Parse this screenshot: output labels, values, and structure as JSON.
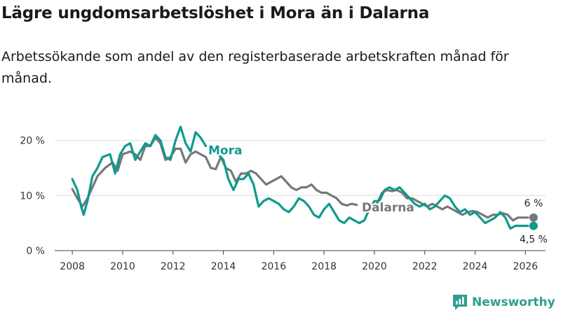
{
  "title": "Lägre ungdomsarbetslöshet i Mora än i Dalarna",
  "subtitle": "Arbetssökande som andel av den registerbaserade arbetskraften månad för månad.",
  "brand": "Newsworthy",
  "colors": {
    "mora": "#0f9a8d",
    "dalarna": "#77777b",
    "grid": "#dddddd",
    "axis": "#444444"
  },
  "chart_data": {
    "type": "line",
    "title": "Lägre ungdomsarbetslöshet i Mora än i Dalarna",
    "xlabel": "",
    "ylabel": "",
    "xlim": [
      2007.3,
      2026.8
    ],
    "ylim": [
      0,
      22
    ],
    "x_ticks": [
      2008,
      2010,
      2012,
      2014,
      2016,
      2018,
      2020,
      2022,
      2024,
      2026
    ],
    "y_ticks": [
      0,
      10,
      20
    ],
    "y_tick_labels": [
      "0 %",
      "10 %",
      "20 %"
    ],
    "grid": true,
    "series": [
      {
        "name": "Dalarna",
        "label_at": 2019.5,
        "end_label": "6 %",
        "points": [
          [
            2008.0,
            11.2
          ],
          [
            2008.2,
            9.5
          ],
          [
            2008.4,
            8.0
          ],
          [
            2008.6,
            9.5
          ],
          [
            2008.8,
            11.5
          ],
          [
            2009.0,
            13.5
          ],
          [
            2009.3,
            15.0
          ],
          [
            2009.6,
            16.0
          ],
          [
            2009.8,
            14.5
          ],
          [
            2010.0,
            17.5
          ],
          [
            2010.3,
            18.0
          ],
          [
            2010.5,
            17.5
          ],
          [
            2010.7,
            16.5
          ],
          [
            2010.9,
            19.0
          ],
          [
            2011.1,
            19.0
          ],
          [
            2011.3,
            20.5
          ],
          [
            2011.5,
            19.5
          ],
          [
            2011.7,
            16.5
          ],
          [
            2011.9,
            17.0
          ],
          [
            2012.1,
            18.5
          ],
          [
            2012.3,
            18.5
          ],
          [
            2012.5,
            16.0
          ],
          [
            2012.7,
            17.5
          ],
          [
            2012.9,
            18.0
          ],
          [
            2013.1,
            17.5
          ],
          [
            2013.3,
            17.0
          ],
          [
            2013.5,
            15.0
          ],
          [
            2013.7,
            14.8
          ],
          [
            2013.9,
            17.0
          ],
          [
            2014.1,
            15.0
          ],
          [
            2014.3,
            14.5
          ],
          [
            2014.5,
            12.5
          ],
          [
            2014.7,
            14.0
          ],
          [
            2014.9,
            14.0
          ],
          [
            2015.1,
            14.5
          ],
          [
            2015.3,
            14.0
          ],
          [
            2015.5,
            13.0
          ],
          [
            2015.7,
            12.0
          ],
          [
            2015.9,
            12.5
          ],
          [
            2016.1,
            13.0
          ],
          [
            2016.3,
            13.5
          ],
          [
            2016.5,
            12.5
          ],
          [
            2016.7,
            11.5
          ],
          [
            2016.9,
            11.0
          ],
          [
            2017.1,
            11.5
          ],
          [
            2017.3,
            11.5
          ],
          [
            2017.5,
            12.0
          ],
          [
            2017.7,
            11.0
          ],
          [
            2017.9,
            10.5
          ],
          [
            2018.1,
            10.5
          ],
          [
            2018.3,
            10.0
          ],
          [
            2018.5,
            9.5
          ],
          [
            2018.7,
            8.5
          ],
          [
            2018.9,
            8.2
          ],
          [
            2019.1,
            8.5
          ],
          [
            2019.3,
            8.3
          ]
        ],
        "points_after_label": [
          [
            2019.9,
            7.5
          ],
          [
            2020.1,
            8.5
          ],
          [
            2020.3,
            10.5
          ],
          [
            2020.5,
            11.0
          ],
          [
            2020.7,
            10.8
          ],
          [
            2020.9,
            11.0
          ],
          [
            2021.1,
            10.5
          ],
          [
            2021.3,
            9.5
          ],
          [
            2021.5,
            9.5
          ],
          [
            2021.7,
            9.0
          ],
          [
            2021.9,
            8.5
          ],
          [
            2022.1,
            8.0
          ],
          [
            2022.3,
            8.5
          ],
          [
            2022.5,
            8.0
          ],
          [
            2022.7,
            7.5
          ],
          [
            2022.9,
            8.0
          ],
          [
            2023.1,
            7.5
          ],
          [
            2023.3,
            7.0
          ],
          [
            2023.5,
            6.5
          ],
          [
            2023.7,
            7.0
          ],
          [
            2023.9,
            7.2
          ],
          [
            2024.1,
            7.0
          ],
          [
            2024.3,
            6.5
          ],
          [
            2024.5,
            6.0
          ],
          [
            2024.7,
            6.5
          ],
          [
            2024.9,
            6.5
          ],
          [
            2025.1,
            6.8
          ],
          [
            2025.3,
            6.5
          ],
          [
            2025.5,
            5.5
          ],
          [
            2025.7,
            6.0
          ],
          [
            2025.9,
            6.0
          ],
          [
            2026.1,
            6.0
          ]
        ]
      },
      {
        "name": "Mora",
        "label_at": 2013.4,
        "end_label": "4,5 %",
        "points": [
          [
            2008.0,
            13.0
          ],
          [
            2008.2,
            11.0
          ],
          [
            2008.35,
            8.0
          ],
          [
            2008.45,
            6.5
          ],
          [
            2008.6,
            9.0
          ],
          [
            2008.8,
            13.5
          ],
          [
            2009.0,
            15.0
          ],
          [
            2009.2,
            17.0
          ],
          [
            2009.5,
            17.5
          ],
          [
            2009.7,
            14.0
          ],
          [
            2009.9,
            17.5
          ],
          [
            2010.1,
            19.0
          ],
          [
            2010.3,
            19.5
          ],
          [
            2010.5,
            16.5
          ],
          [
            2010.7,
            18.0
          ],
          [
            2010.9,
            19.5
          ],
          [
            2011.1,
            19.0
          ],
          [
            2011.3,
            21.0
          ],
          [
            2011.5,
            20.0
          ],
          [
            2011.7,
            17.0
          ],
          [
            2011.9,
            16.5
          ],
          [
            2012.1,
            20.0
          ],
          [
            2012.3,
            22.5
          ],
          [
            2012.5,
            19.5
          ],
          [
            2012.7,
            18.0
          ],
          [
            2012.9,
            21.5
          ],
          [
            2013.1,
            20.5
          ],
          [
            2013.3,
            19.0
          ]
        ],
        "points_after_label": [
          [
            2013.8,
            17.5
          ],
          [
            2014.0,
            16.5
          ],
          [
            2014.2,
            13.0
          ],
          [
            2014.4,
            11.0
          ],
          [
            2014.6,
            13.0
          ],
          [
            2014.8,
            13.0
          ],
          [
            2015.0,
            14.0
          ],
          [
            2015.2,
            12.0
          ],
          [
            2015.4,
            8.0
          ],
          [
            2015.6,
            9.0
          ],
          [
            2015.8,
            9.5
          ],
          [
            2016.0,
            9.0
          ],
          [
            2016.2,
            8.5
          ],
          [
            2016.4,
            7.5
          ],
          [
            2016.6,
            7.0
          ],
          [
            2016.8,
            8.0
          ],
          [
            2017.0,
            9.5
          ],
          [
            2017.2,
            9.0
          ],
          [
            2017.4,
            8.0
          ],
          [
            2017.6,
            6.5
          ],
          [
            2017.8,
            6.0
          ],
          [
            2018.0,
            7.5
          ],
          [
            2018.2,
            8.5
          ],
          [
            2018.4,
            7.0
          ],
          [
            2018.6,
            5.5
          ],
          [
            2018.8,
            5.0
          ],
          [
            2019.0,
            6.0
          ],
          [
            2019.2,
            5.5
          ],
          [
            2019.4,
            5.0
          ],
          [
            2019.6,
            5.5
          ],
          [
            2019.8,
            7.5
          ],
          [
            2020.0,
            9.0
          ],
          [
            2020.2,
            9.0
          ],
          [
            2020.4,
            11.0
          ],
          [
            2020.6,
            11.5
          ],
          [
            2020.8,
            11.0
          ],
          [
            2021.0,
            11.5
          ],
          [
            2021.2,
            10.5
          ],
          [
            2021.4,
            9.5
          ],
          [
            2021.6,
            8.5
          ],
          [
            2021.8,
            8.0
          ],
          [
            2022.0,
            8.5
          ],
          [
            2022.2,
            7.5
          ],
          [
            2022.4,
            8.0
          ],
          [
            2022.6,
            9.0
          ],
          [
            2022.8,
            10.0
          ],
          [
            2023.0,
            9.5
          ],
          [
            2023.2,
            8.0
          ],
          [
            2023.4,
            7.0
          ],
          [
            2023.6,
            7.5
          ],
          [
            2023.8,
            6.5
          ],
          [
            2024.0,
            7.0
          ],
          [
            2024.2,
            6.0
          ],
          [
            2024.4,
            5.0
          ],
          [
            2024.6,
            5.5
          ],
          [
            2024.8,
            6.0
          ],
          [
            2025.0,
            7.0
          ],
          [
            2025.2,
            6.0
          ],
          [
            2025.4,
            4.0
          ],
          [
            2025.6,
            4.5
          ],
          [
            2025.8,
            4.5
          ],
          [
            2026.0,
            4.5
          ],
          [
            2026.1,
            4.5
          ]
        ]
      }
    ]
  }
}
